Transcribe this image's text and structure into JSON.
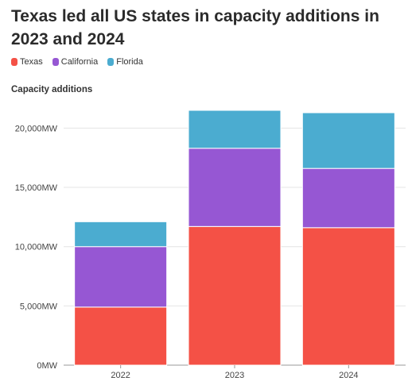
{
  "chart_data": {
    "type": "bar",
    "stacked": true,
    "title": "Texas led all US states in capacity additions in 2023 and 2024",
    "ylabel": "Capacity additions",
    "xlabel": "",
    "categories": [
      "2022",
      "2023",
      "2024"
    ],
    "series": [
      {
        "name": "Texas",
        "color": "#f45146",
        "values": [
          4900,
          11700,
          11600
        ]
      },
      {
        "name": "California",
        "color": "#9657d3",
        "values": [
          5100,
          6600,
          5000
        ]
      },
      {
        "name": "Florida",
        "color": "#4bacd0",
        "values": [
          2100,
          3200,
          4700
        ]
      }
    ],
    "ylim": [
      0,
      21500
    ],
    "yticks": [
      0,
      5000,
      10000,
      15000,
      20000
    ],
    "ytick_labels": [
      "0MW",
      "5,000MW",
      "10,000MW",
      "15,000MW",
      "20,000MW"
    ],
    "grid": true,
    "legend_position": "top-left"
  }
}
